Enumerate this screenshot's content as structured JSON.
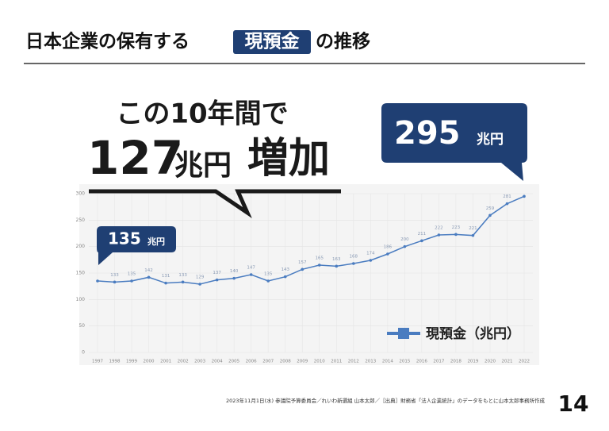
{
  "title": {
    "before": "日本企業の保有する",
    "highlight": "現預金",
    "after": "の推移"
  },
  "headline": {
    "line1": "この10年間で",
    "line2a": "127",
    "line2b": "兆円",
    "line2c": "増加"
  },
  "chart_data": {
    "type": "line",
    "categories": [
      "1997",
      "1998",
      "1999",
      "2000",
      "2001",
      "2002",
      "2003",
      "2004",
      "2005",
      "2006",
      "2007",
      "2008",
      "2009",
      "2010",
      "2011",
      "2012",
      "2013",
      "2014",
      "2015",
      "2016",
      "2017",
      "2018",
      "2019",
      "2020",
      "2021",
      "2022"
    ],
    "series": [
      {
        "name": "現預金（兆円）",
        "color": "#4a7cc0",
        "values": [
          135,
          133,
          135,
          142,
          131,
          133,
          129,
          137,
          140,
          147,
          135,
          143,
          157,
          165,
          163,
          168,
          174,
          186,
          200,
          211,
          222,
          223,
          221,
          259,
          281,
          295
        ]
      }
    ],
    "callout_unit": "兆円",
    "ylim": [
      0,
      300
    ],
    "yticks": [
      0,
      50,
      100,
      150,
      200,
      250,
      300
    ],
    "grid": true
  },
  "footer": {
    "source": "2023年11月1日(水) 参議院予算委員会／れいわ新選組 山本太郎／［出典］財務省「法人企業統計」のデータをもとに山本太郎事務所作成",
    "page": "14"
  }
}
